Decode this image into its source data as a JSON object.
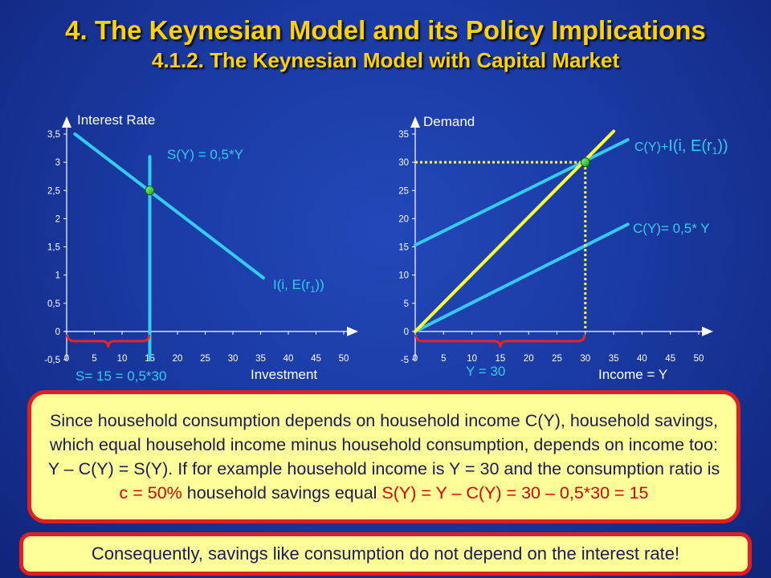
{
  "title": "4. The Keynesian Model and its Policy Implications",
  "subtitle": "4.1.2. The Keynesian Model with Capital Market",
  "chart_data": [
    {
      "type": "line",
      "ylabel": "Interest Rate",
      "xlabel": "Investment",
      "xlim": [
        0,
        50
      ],
      "ylim": [
        -0.5,
        3.5
      ],
      "x_ticks": [
        "0",
        "5",
        "10",
        "15",
        "20",
        "25",
        "30",
        "35",
        "40",
        "45",
        "50"
      ],
      "y_ticks": [
        "-0,5",
        "0",
        "0,5",
        "1",
        "1,5",
        "2",
        "2,5",
        "3",
        "3,5"
      ],
      "series": [
        {
          "name": "I(i, E(r1))",
          "color": "#33ccee",
          "points": [
            [
              1.5,
              3.5
            ],
            [
              35.5,
              0.95
            ]
          ]
        },
        {
          "name": "S(Y) = 0,5*Y",
          "color": "#33ccee",
          "points": [
            [
              15,
              -0.5
            ],
            [
              15,
              3.1
            ]
          ]
        }
      ],
      "equilibrium": {
        "x": 15,
        "y": 2.5,
        "color": "#22dd22"
      },
      "annotations": {
        "savings_label": "S(Y) = 0,5*Y",
        "investment_label": "I(i, E(r",
        "investment_sub": "1",
        "investment_close": "))",
        "brace_label": "S= 15 = 0,5*30"
      }
    },
    {
      "type": "line",
      "ylabel": "Demand",
      "xlabel": "Income = Y",
      "xlim": [
        0,
        50
      ],
      "ylim": [
        -5,
        35
      ],
      "x_ticks": [
        "0",
        "5",
        "10",
        "15",
        "20",
        "25",
        "30",
        "35",
        "40",
        "45",
        "50"
      ],
      "y_ticks": [
        "-5",
        "0",
        "5",
        "10",
        "15",
        "20",
        "25",
        "30",
        "35"
      ],
      "series": [
        {
          "name": "C(Y)+I(i, E(r1))",
          "color": "#33ccee",
          "points": [
            [
              0,
              15.3
            ],
            [
              37.5,
              34
            ]
          ]
        },
        {
          "name": "C(Y)= 0,5* Y",
          "color": "#33ccee",
          "points": [
            [
              0,
              0
            ],
            [
              37.5,
              19
            ]
          ]
        },
        {
          "name": "45-degree line",
          "color": "#ffff33",
          "points": [
            [
              0,
              0
            ],
            [
              35,
              35.5
            ]
          ]
        }
      ],
      "equilibrium": {
        "x": 30,
        "y": 30,
        "color": "#22dd22"
      },
      "annotations": {
        "upper_label_small": "C(Y)+",
        "upper_label_big": "I(i, E(r",
        "upper_label_sub": "1",
        "upper_label_close": "))",
        "lower_label": "C(Y)= 0,5* Y",
        "brace_label": "Y = 30"
      }
    }
  ],
  "explanation": {
    "text_1": "Since household consumption depends on household income C(Y), household savings, which equal household income minus household consumption, depends on income too: Y – C(Y) = S(Y). If for example household income is Y = 30 and the consumption ratio is ",
    "text_red_1": "c = 50%",
    "text_2": " household savings equal ",
    "text_red_2": "S(Y) = Y – C(Y) = 30 – 0,5*30 = 15"
  },
  "conclusion": "Consequently, savings like consumption do not depend on the interest rate!"
}
